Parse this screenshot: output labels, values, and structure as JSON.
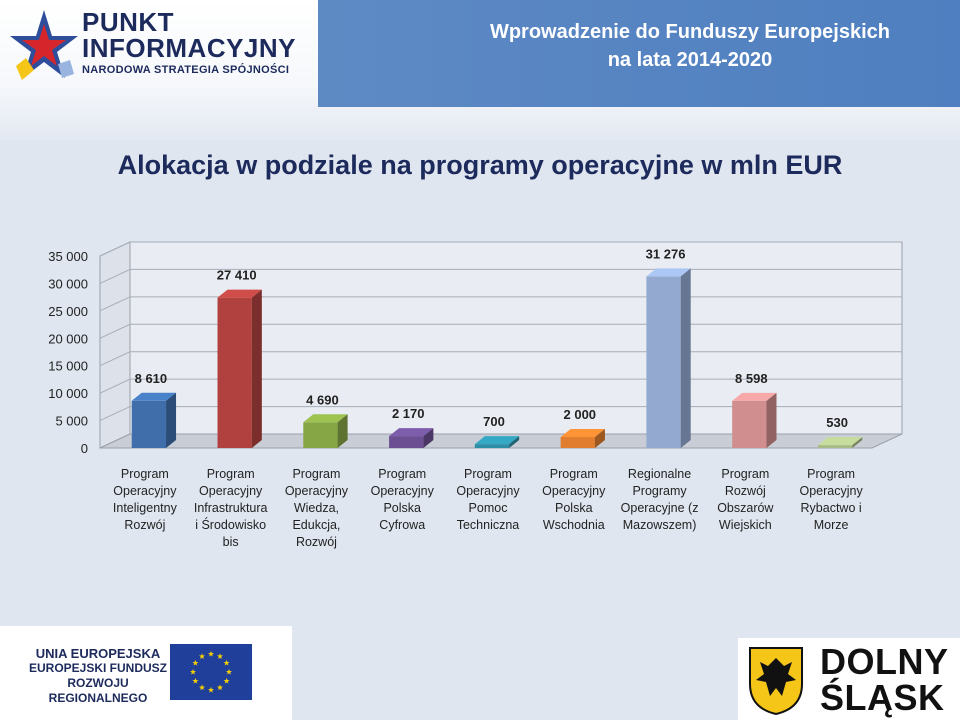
{
  "header": {
    "banner_line1": "Wprowadzenie do Funduszy Europejskich",
    "banner_line2": "na lata 2014-2020",
    "logo_line1": "PUNKT",
    "logo_line2": "INFORMACYJNY",
    "logo_line3": "NARODOWA STRATEGIA SPÓJNOŚCI",
    "accent": "#4f7fc0"
  },
  "footer": {
    "ue_line1": "UNIA EUROPEJSKA",
    "ue_line2": "EUROPEJSKI FUNDUSZ",
    "ue_line3": "ROZWOJU REGIONALNEGO",
    "region_line1": "DOLNY",
    "region_line2": "ŚLĄSK"
  },
  "chart_data": {
    "type": "bar",
    "title": "Alokacja w podziale na programy operacyjne w mln EUR",
    "xlabel": "",
    "ylabel": "",
    "ylim": [
      0,
      35000
    ],
    "yticks": [
      0,
      5000,
      10000,
      15000,
      20000,
      25000,
      30000,
      35000
    ],
    "ytick_labels": [
      "0",
      "5 000",
      "10 000",
      "15 000",
      "20 000",
      "25 000",
      "30 000",
      "35 000"
    ],
    "grid": true,
    "legend": "none",
    "categories": [
      [
        "Program",
        "Operacyjny",
        "Inteligentny",
        "Rozwój"
      ],
      [
        "Program",
        "Operacyjny",
        "Infrastruktura",
        "i Środowisko",
        "bis"
      ],
      [
        "Program",
        "Operacyjny",
        "Wiedza,",
        "Edukcja,",
        "Rozwój"
      ],
      [
        "Program",
        "Operacyjny",
        "Polska",
        "Cyfrowa"
      ],
      [
        "Program",
        "Operacyjny",
        "Pomoc",
        "Techniczna"
      ],
      [
        "Program",
        "Operacyjny",
        "Polska",
        "Wschodnia"
      ],
      [
        "Regionalne",
        "Programy",
        "Operacyjne (z",
        "Mazowszem)"
      ],
      [
        "Program",
        "Rozwój",
        "Obszarów",
        "Wiejskich"
      ],
      [
        "Program",
        "Operacyjny",
        "Rybactwo i",
        "Morze"
      ]
    ],
    "values": [
      8610,
      27410,
      4690,
      2170,
      700,
      2000,
      31276,
      8598,
      530
    ],
    "value_labels": [
      "8 610",
      "27 410",
      "4 690",
      "2 170",
      "700",
      "2 000",
      "31 276",
      "8 598",
      "530"
    ],
    "colors": [
      "#3f6eaa",
      "#b0413e",
      "#86a545",
      "#6b4f92",
      "#2c8ea6",
      "#e07d2e",
      "#93a9d0",
      "#d18e8e",
      "#a8bb85"
    ]
  }
}
